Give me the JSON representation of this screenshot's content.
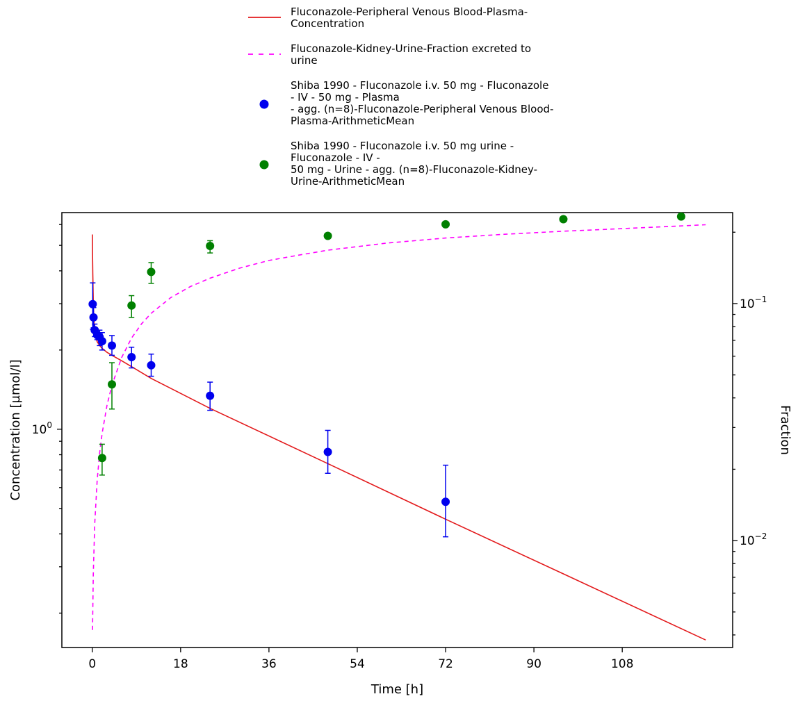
{
  "chart_data": {
    "type": "scatter",
    "xlabel": "Time [h]",
    "ylabel_left": "Concentration [µmol/l]",
    "ylabel_right": "Fraction",
    "xlim": [
      -6.2,
      130.5
    ],
    "x_ticks": [
      "0",
      "18",
      "36",
      "54",
      "72",
      "90",
      "108"
    ],
    "x_tick_values": [
      0,
      18,
      36,
      54,
      72,
      90,
      108
    ],
    "ylim_left": [
      0.148,
      6.66
    ],
    "y_left_scale": "log",
    "y_left_tick_labels": [
      {
        "base": "10",
        "exp": "0",
        "value": 1
      }
    ],
    "ylim_right": [
      0.00354,
      0.242
    ],
    "y_right_scale": "log",
    "y_right_tick_labels": [
      {
        "base": "10",
        "exp": "−1",
        "value": 0.1
      },
      {
        "base": "10",
        "exp": "−2",
        "value": 0.01
      }
    ],
    "legend": {
      "placement": "top-center",
      "entries": [
        {
          "lines": [
            "Fluconazole-Peripheral Venous Blood-Plasma-",
            "Concentration"
          ],
          "style": "line",
          "color": "#e31a1c"
        },
        {
          "lines": [
            "Fluconazole-Kidney-Urine-Fraction excreted to",
            "urine"
          ],
          "style": "dashed",
          "color": "#ff00ff"
        },
        {
          "lines": [
            "Shiba 1990 - Fluconazole i.v. 50 mg - Fluconazole",
            "- IV - 50 mg - Plasma",
            "- agg. (n=8)-Fluconazole-Peripheral Venous Blood-",
            "Plasma-ArithmeticMean"
          ],
          "style": "marker",
          "color": "#0000ee"
        },
        {
          "lines": [
            "Shiba 1990 - Fluconazole i.v. 50 mg urine -",
            "Fluconazole - IV -",
            "50 mg - Urine - agg. (n=8)-Fluconazole-Kidney-",
            "Urine-ArithmeticMean"
          ],
          "style": "marker",
          "color": "#008000"
        }
      ]
    },
    "series": [
      {
        "axis": "left",
        "kind": "line",
        "color": "#e31a1c",
        "x": [
          0.02,
          0.05,
          0.1,
          0.2,
          0.3,
          0.5,
          0.75,
          1,
          1.5,
          2,
          3,
          4,
          6,
          8,
          12,
          24,
          48,
          72,
          96,
          125
        ],
        "y": [
          5.5,
          4.7,
          3.9,
          3.1,
          2.65,
          2.35,
          2.22,
          2.15,
          2.08,
          2.03,
          1.96,
          1.91,
          1.82,
          1.73,
          1.56,
          1.2,
          0.74,
          0.455,
          0.282,
          0.158
        ]
      },
      {
        "axis": "right",
        "kind": "dashed",
        "color": "#ff00ff",
        "x": [
          0.05,
          0.2,
          0.5,
          1,
          1.5,
          2,
          3,
          4,
          6,
          8,
          10,
          12,
          16,
          20,
          24,
          30,
          36,
          42,
          48,
          60,
          72,
          84,
          96,
          108,
          125
        ],
        "y": [
          0.0042,
          0.0072,
          0.0118,
          0.018,
          0.0235,
          0.0283,
          0.0372,
          0.0452,
          0.0593,
          0.0715,
          0.082,
          0.091,
          0.106,
          0.118,
          0.128,
          0.141,
          0.152,
          0.16,
          0.168,
          0.18,
          0.189,
          0.196,
          0.202,
          0.207,
          0.215
        ]
      },
      {
        "axis": "left",
        "kind": "points",
        "color": "#0000ee",
        "x": [
          0.083,
          0.25,
          0.5,
          1,
          1.5,
          2,
          4,
          8,
          12,
          24,
          48,
          72
        ],
        "y": [
          2.99,
          2.66,
          2.38,
          2.28,
          2.24,
          2.16,
          2.08,
          1.88,
          1.75,
          1.34,
          0.82,
          0.53
        ],
        "err_low": [
          0.59,
          0.23,
          0.13,
          0.09,
          0.16,
          0.16,
          0.17,
          0.17,
          0.16,
          0.16,
          0.14,
          0.14
        ],
        "err_high": [
          0.61,
          0.24,
          0.13,
          0.1,
          0.14,
          0.17,
          0.19,
          0.17,
          0.18,
          0.17,
          0.17,
          0.2
        ]
      },
      {
        "axis": "right",
        "kind": "points",
        "color": "#008000",
        "x": [
          2,
          4,
          8,
          12,
          24,
          48,
          72,
          96,
          120
        ],
        "y": [
          0.0223,
          0.0456,
          0.0981,
          0.136,
          0.175,
          0.193,
          0.216,
          0.227,
          0.233
        ],
        "err_low": [
          0.0034,
          0.0097,
          0.0107,
          0.0143,
          0.0115,
          0.0043,
          0.0027,
          0.0025,
          0.0018
        ],
        "err_high": [
          0.0032,
          0.0107,
          0.0099,
          0.0129,
          0.0092,
          0.0029,
          0.0025,
          0.0024,
          0.0019
        ]
      }
    ]
  }
}
